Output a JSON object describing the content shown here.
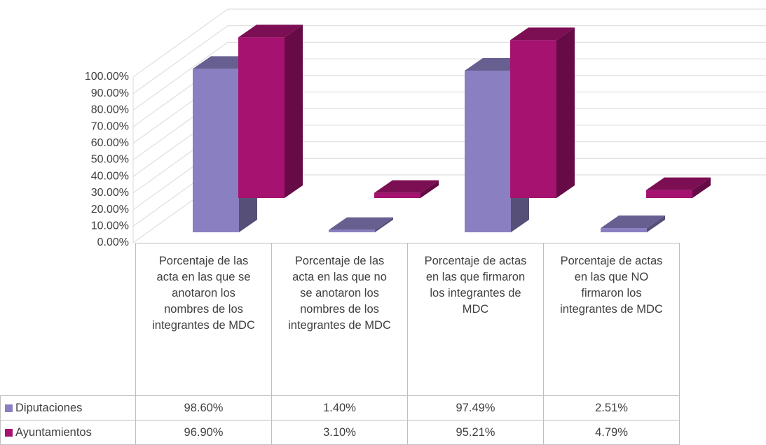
{
  "chart_data": {
    "type": "bar",
    "categories": [
      "Porcentaje de las acta en las que se anotaron los nombres de los integrantes de MDC",
      "Porcentaje de las acta en las que no se anotaron los nombres de los integrantes de MDC",
      "Porcentaje de actas en las que firmaron los integrantes de MDC",
      "Porcentaje de actas en las que NO firmaron los integrantes de MDC"
    ],
    "series": [
      {
        "name": "Diputaciones",
        "color": "#8a7fc1",
        "values": [
          98.6,
          1.4,
          97.49,
          2.51
        ],
        "value_labels": [
          "98.60%",
          "1.40%",
          "97.49%",
          "2.51%"
        ]
      },
      {
        "name": "Ayuntamientos",
        "color": "#a5126f",
        "values": [
          96.9,
          3.1,
          95.21,
          4.79
        ],
        "value_labels": [
          "96.90%",
          "3.10%",
          "95.21%",
          "4.79%"
        ]
      }
    ],
    "ylim": [
      0,
      100
    ],
    "yticks": [
      {
        "value": 0,
        "label": "0.00%"
      },
      {
        "value": 10,
        "label": "10.00%"
      },
      {
        "value": 20,
        "label": "20.00%"
      },
      {
        "value": 30,
        "label": "30.00%"
      },
      {
        "value": 40,
        "label": "40.00%"
      },
      {
        "value": 50,
        "label": "50.00%"
      },
      {
        "value": 60,
        "label": "60.00%"
      },
      {
        "value": 70,
        "label": "70.00%"
      },
      {
        "value": 80,
        "label": "80.00%"
      },
      {
        "value": 90,
        "label": "90.00%"
      },
      {
        "value": 100,
        "label": "100.00%"
      }
    ]
  }
}
